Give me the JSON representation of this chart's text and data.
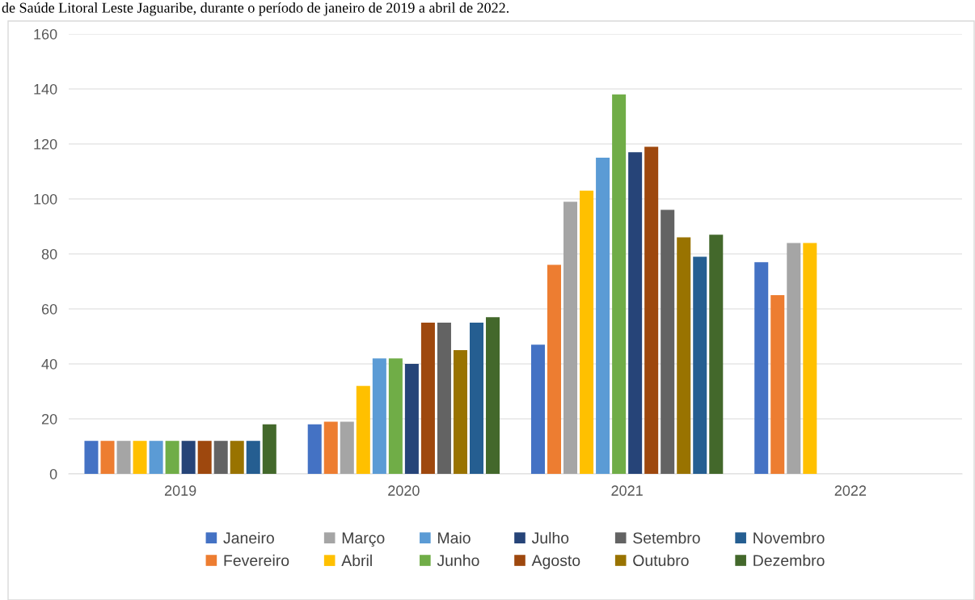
{
  "chart_data": {
    "type": "bar",
    "title": "de Saúde Litoral Leste Jaguaribe, durante o período de janeiro de 2019 a abril de 2022.",
    "categories": [
      "2019",
      "2020",
      "2021",
      "2022"
    ],
    "series": [
      {
        "name": "Janeiro",
        "color": "#4472c4",
        "values": [
          12,
          18,
          47,
          77
        ]
      },
      {
        "name": "Fevereiro",
        "color": "#ed7d31",
        "values": [
          12,
          19,
          76,
          65
        ]
      },
      {
        "name": "Março",
        "color": "#a5a5a5",
        "values": [
          12,
          19,
          99,
          84
        ]
      },
      {
        "name": "Abril",
        "color": "#ffc000",
        "values": [
          12,
          32,
          103,
          84
        ]
      },
      {
        "name": "Maio",
        "color": "#5b9bd5",
        "values": [
          12,
          42,
          115,
          null
        ]
      },
      {
        "name": "Junho",
        "color": "#70ad47",
        "values": [
          12,
          42,
          138,
          null
        ]
      },
      {
        "name": "Julho",
        "color": "#264478",
        "values": [
          12,
          40,
          117,
          null
        ]
      },
      {
        "name": "Agosto",
        "color": "#9e480e",
        "values": [
          12,
          55,
          119,
          null
        ]
      },
      {
        "name": "Setembro",
        "color": "#636363",
        "values": [
          12,
          55,
          96,
          null
        ]
      },
      {
        "name": "Outubro",
        "color": "#997300",
        "values": [
          12,
          45,
          86,
          null
        ]
      },
      {
        "name": "Novembro",
        "color": "#255e91",
        "values": [
          12,
          55,
          79,
          null
        ]
      },
      {
        "name": "Dezembro",
        "color": "#43682b",
        "values": [
          18,
          57,
          87,
          null
        ]
      }
    ],
    "ylim": [
      0,
      160
    ],
    "yticks": [
      0,
      20,
      40,
      60,
      80,
      100,
      120,
      140,
      160
    ],
    "grid": "y",
    "legend": "bottom"
  }
}
